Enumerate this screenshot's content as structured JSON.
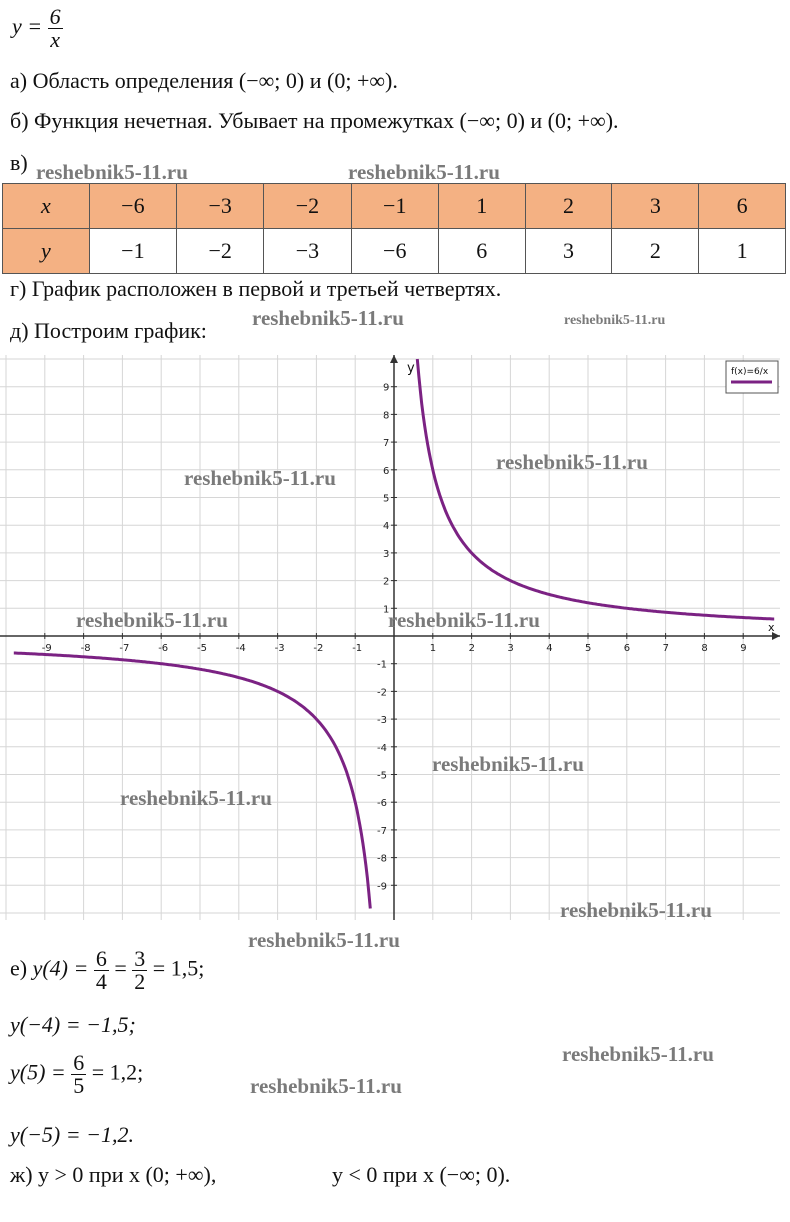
{
  "formula": {
    "lhs": "y =",
    "num": "6",
    "den": "x"
  },
  "lines": {
    "a": "а) Область определения (−∞; 0) и (0;  +∞).",
    "b": "б) Функция нечетная. Убывает на промежутках (−∞; 0) и (0;  +∞).",
    "v": "в)",
    "g": "г) График расположен в первой и третьей четвертях.",
    "d": "д) Построим график:"
  },
  "table": {
    "x_label": "x",
    "y_label": "y",
    "x": [
      "−6",
      "−3",
      "−2",
      "−1",
      "1",
      "2",
      "3",
      "6"
    ],
    "y": [
      "−1",
      "−2",
      "−3",
      "−6",
      "6",
      "3",
      "2",
      "1"
    ]
  },
  "chart_data": {
    "type": "line",
    "function": "6/x",
    "legend": "f(x)=6/x",
    "legend_placement": "top-right",
    "xlabel": "x",
    "ylabel": "y",
    "xlim": [
      -9.5,
      9.8
    ],
    "ylim": [
      -9.8,
      9.9
    ],
    "x_ticks": [
      -9,
      -8,
      -7,
      -6,
      -5,
      -4,
      -3,
      -2,
      -1,
      1,
      2,
      3,
      4,
      5,
      6,
      7,
      8,
      9
    ],
    "y_ticks": [
      -9,
      -8,
      -7,
      -6,
      -5,
      -4,
      -3,
      -2,
      -1,
      1,
      2,
      3,
      4,
      5,
      6,
      7,
      8,
      9
    ],
    "grid": true,
    "series_color": "#7b2283",
    "series": [
      {
        "x": [
          0.6,
          0.75,
          1,
          1.5,
          2,
          3,
          4,
          5,
          6,
          7,
          8,
          9,
          9.8
        ],
        "y": [
          10,
          8,
          6,
          4,
          3,
          2,
          1.5,
          1.2,
          1,
          0.857,
          0.75,
          0.667,
          0.612
        ]
      },
      {
        "x": [
          -9.8,
          -9,
          -8,
          -7,
          -6,
          -5,
          -4,
          -3,
          -2,
          -1.5,
          -1,
          -0.75,
          -0.61
        ],
        "y": [
          -0.612,
          -0.667,
          -0.75,
          -0.857,
          -1,
          -1.2,
          -1.5,
          -2,
          -3,
          -4,
          -6,
          -8,
          -9.84
        ]
      }
    ]
  },
  "eval": {
    "e_prefix": "е) ",
    "e_func": "y(4) =",
    "e_f1_num": "6",
    "e_f1_den": "4",
    "e_eq": "=",
    "e_f2_num": "3",
    "e_f2_den": "2",
    "e_result": "= 1,5;",
    "l2": "y(−4) = −1,5;",
    "l3_func": "y(5) =",
    "l3_num": "6",
    "l3_den": "5",
    "l3_result": "= 1,2;",
    "l4": "y(−5) = −1,2."
  },
  "final": {
    "part1": "ж) y > 0 при x (0; +∞),",
    "part2": "y < 0 при x (−∞; 0)."
  },
  "watermark": "reshebnik5-11.ru"
}
